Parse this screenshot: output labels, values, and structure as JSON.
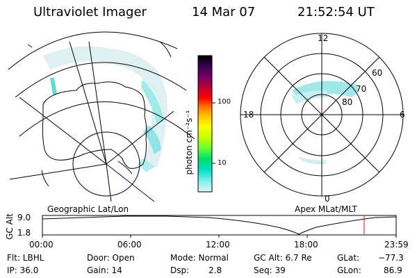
{
  "header": {
    "title": "Ultraviolet Imager",
    "date": "14 Mar 07",
    "time": "21:52:54 UT"
  },
  "colorbar": {
    "unit_label": "photon cm⁻²s⁻¹",
    "ticks": [
      "100",
      "10"
    ],
    "colors": [
      "#000000",
      "#3b0052",
      "#7a0060",
      "#c00030",
      "#ff0000",
      "#ff7b00",
      "#ffc800",
      "#ffff00",
      "#c8ff00",
      "#66ff33",
      "#00dd66",
      "#00e0c8",
      "#7ff0ee",
      "#e6f5f5"
    ]
  },
  "geo_map": {
    "label": "Geographic Lat/Lon"
  },
  "polar_plot": {
    "label": "Apex MLat/MLT",
    "lat_labels": [
      "60",
      "70",
      "80"
    ],
    "mlt_labels": {
      "top": "12",
      "left": "18",
      "right": "6",
      "bottom": "0"
    }
  },
  "altitude_plot": {
    "ylabel": "GC Alt",
    "y_ticks": [
      "9.0",
      "1.8"
    ],
    "x_ticks": [
      "00:00",
      "06:00",
      "12:00",
      "18:00",
      "23:59"
    ],
    "cursor_color": "#ff0000"
  },
  "status": {
    "filter": "Flt: LBHL",
    "ip": "IP: 36.0",
    "door": "Door: Open",
    "gain": "Gain: 14",
    "mode": "Mode: Normal",
    "dsp_label": "Dsp:",
    "dsp_value": "2.8",
    "gc_alt": "GC Alt: 6.7 Re",
    "seq": "Seq: 39",
    "glat_label": "GLat:",
    "glat_value": "−77.3",
    "glon_label": "GLon:",
    "glon_value": "86.9"
  }
}
